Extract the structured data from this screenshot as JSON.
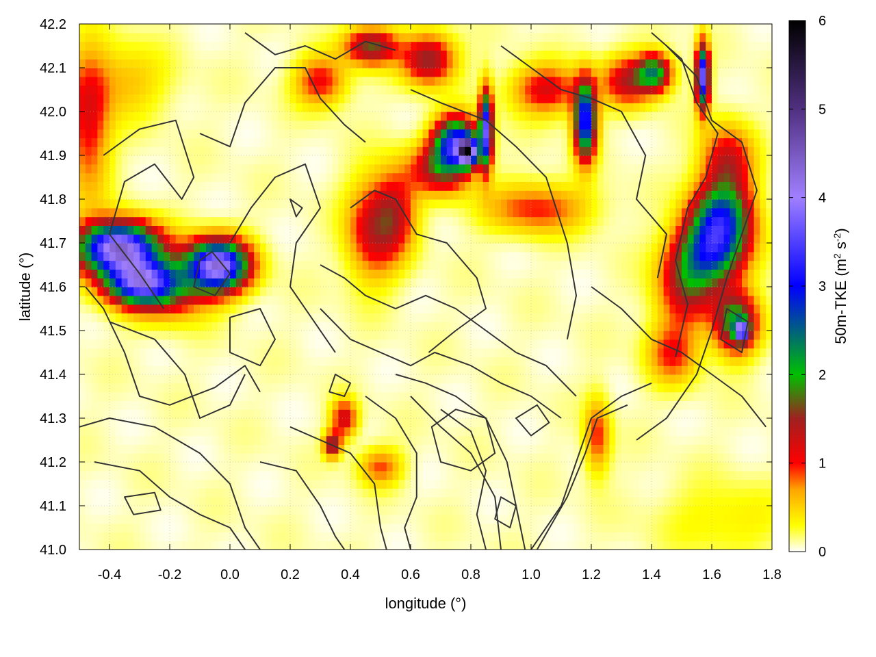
{
  "chart_data": {
    "type": "heatmap",
    "title": "",
    "xlabel": "longitude (°)",
    "ylabel": "latitude (°)",
    "colorbar_label_parts": [
      "50m-TKE (m",
      "2",
      " s",
      "-2",
      ")"
    ],
    "xlim": [
      -0.5,
      1.8
    ],
    "ylim": [
      41.0,
      42.2
    ],
    "x_ticks": [
      "-0.4",
      "-0.2",
      "0.0",
      "0.2",
      "0.4",
      "0.6",
      "0.8",
      "1.0",
      "1.2",
      "1.4",
      "1.6",
      "1.8"
    ],
    "x_tick_values": [
      -0.4,
      -0.2,
      0.0,
      0.2,
      0.4,
      0.6,
      0.8,
      1.0,
      1.2,
      1.4,
      1.6,
      1.8
    ],
    "y_ticks": [
      "41.0",
      "41.1",
      "41.2",
      "41.3",
      "41.4",
      "41.5",
      "41.6",
      "41.7",
      "41.8",
      "41.9",
      "42.0",
      "42.1",
      "42.2"
    ],
    "y_tick_values": [
      41.0,
      41.1,
      41.2,
      41.3,
      41.4,
      41.5,
      41.6,
      41.7,
      41.8,
      41.9,
      42.0,
      42.1,
      42.2
    ],
    "colorbar_range": [
      0,
      6
    ],
    "colorbar_ticks": [
      "0",
      "1",
      "2",
      "3",
      "4",
      "5",
      "6"
    ],
    "colorbar_tick_values": [
      0,
      1,
      2,
      3,
      4,
      5,
      6
    ],
    "grid": true,
    "colormap": [
      {
        "v": 0.0,
        "color": "#ffffff"
      },
      {
        "v": 0.3,
        "color": "#ffff00"
      },
      {
        "v": 0.7,
        "color": "#ffa500"
      },
      {
        "v": 1.0,
        "color": "#ff0000"
      },
      {
        "v": 1.5,
        "color": "#a02020"
      },
      {
        "v": 2.0,
        "color": "#00c000"
      },
      {
        "v": 3.0,
        "color": "#0000ff"
      },
      {
        "v": 4.0,
        "color": "#a080ff"
      },
      {
        "v": 5.0,
        "color": "#503080"
      },
      {
        "v": 6.0,
        "color": "#000000"
      }
    ],
    "features": [
      {
        "lon": -0.37,
        "lat": 41.69,
        "peak": 4.2,
        "sx": 0.09,
        "sy": 0.04
      },
      {
        "lon": -0.3,
        "lat": 41.61,
        "peak": 3.0,
        "sx": 0.08,
        "sy": 0.035
      },
      {
        "lon": -0.04,
        "lat": 41.65,
        "peak": 4.0,
        "sx": 0.07,
        "sy": 0.04
      },
      {
        "lon": -0.2,
        "lat": 41.6,
        "peak": 1.2,
        "sx": 0.1,
        "sy": 0.05
      },
      {
        "lon": -0.47,
        "lat": 41.97,
        "peak": 1.0,
        "sx": 0.05,
        "sy": 0.12
      },
      {
        "lon": -0.35,
        "lat": 42.07,
        "peak": 0.5,
        "sx": 0.1,
        "sy": 0.06
      },
      {
        "lon": 0.47,
        "lat": 41.73,
        "peak": 1.1,
        "sx": 0.06,
        "sy": 0.08
      },
      {
        "lon": 0.55,
        "lat": 41.77,
        "peak": 1.0,
        "sx": 0.05,
        "sy": 0.07
      },
      {
        "lon": 1.02,
        "lat": 41.78,
        "peak": 0.9,
        "sx": 0.12,
        "sy": 0.04
      },
      {
        "lon": 0.47,
        "lat": 42.15,
        "peak": 1.6,
        "sx": 0.06,
        "sy": 0.03
      },
      {
        "lon": 0.3,
        "lat": 42.07,
        "peak": 1.0,
        "sx": 0.06,
        "sy": 0.04
      },
      {
        "lon": 0.75,
        "lat": 41.93,
        "peak": 3.0,
        "sx": 0.05,
        "sy": 0.04
      },
      {
        "lon": 0.79,
        "lat": 41.91,
        "peak": 4.0,
        "sx": 0.02,
        "sy": 0.02
      },
      {
        "lon": 0.85,
        "lat": 41.96,
        "peak": 3.3,
        "sx": 0.015,
        "sy": 0.06
      },
      {
        "lon": 0.66,
        "lat": 42.12,
        "peak": 1.5,
        "sx": 0.06,
        "sy": 0.04
      },
      {
        "lon": 0.7,
        "lat": 41.87,
        "peak": 1.4,
        "sx": 0.07,
        "sy": 0.04
      },
      {
        "lon": 1.18,
        "lat": 41.98,
        "peak": 3.2,
        "sx": 0.025,
        "sy": 0.06
      },
      {
        "lon": 1.05,
        "lat": 42.05,
        "peak": 1.1,
        "sx": 0.08,
        "sy": 0.04
      },
      {
        "lon": 1.32,
        "lat": 42.07,
        "peak": 1.2,
        "sx": 0.06,
        "sy": 0.04
      },
      {
        "lon": 1.41,
        "lat": 42.09,
        "peak": 2.0,
        "sx": 0.04,
        "sy": 0.03
      },
      {
        "lon": 1.57,
        "lat": 42.08,
        "peak": 3.6,
        "sx": 0.015,
        "sy": 0.05
      },
      {
        "lon": 1.65,
        "lat": 41.88,
        "peak": 1.3,
        "sx": 0.06,
        "sy": 0.06
      },
      {
        "lon": 1.63,
        "lat": 41.76,
        "peak": 2.3,
        "sx": 0.07,
        "sy": 0.05
      },
      {
        "lon": 1.6,
        "lat": 41.68,
        "peak": 2.3,
        "sx": 0.08,
        "sy": 0.05
      },
      {
        "lon": 1.52,
        "lat": 41.6,
        "peak": 1.3,
        "sx": 0.07,
        "sy": 0.06
      },
      {
        "lon": 1.68,
        "lat": 41.52,
        "peak": 2.0,
        "sx": 0.05,
        "sy": 0.05
      },
      {
        "lon": 1.7,
        "lat": 41.5,
        "peak": 3.0,
        "sx": 0.015,
        "sy": 0.015
      },
      {
        "lon": 1.47,
        "lat": 41.45,
        "peak": 0.9,
        "sx": 0.06,
        "sy": 0.05
      },
      {
        "lon": 0.38,
        "lat": 41.3,
        "peak": 1.2,
        "sx": 0.03,
        "sy": 0.03
      },
      {
        "lon": 0.34,
        "lat": 41.24,
        "peak": 1.6,
        "sx": 0.02,
        "sy": 0.02
      },
      {
        "lon": 1.22,
        "lat": 41.26,
        "peak": 0.9,
        "sx": 0.03,
        "sy": 0.06
      },
      {
        "lon": 0.5,
        "lat": 41.19,
        "peak": 0.8,
        "sx": 0.05,
        "sy": 0.03
      },
      {
        "lon": 1.65,
        "lat": 41.07,
        "peak": 0.3,
        "sx": 0.15,
        "sy": 0.06
      }
    ],
    "contour_lines": [
      [
        [
          -0.42,
          41.9
        ],
        [
          -0.3,
          41.96
        ],
        [
          -0.18,
          41.98
        ],
        [
          -0.12,
          41.85
        ],
        [
          -0.16,
          41.8
        ],
        [
          -0.25,
          41.88
        ],
        [
          -0.35,
          41.84
        ],
        [
          -0.4,
          41.72
        ],
        [
          -0.3,
          41.63
        ],
        [
          -0.22,
          41.55
        ]
      ],
      [
        [
          -0.48,
          41.6
        ],
        [
          -0.42,
          41.55
        ],
        [
          -0.35,
          41.45
        ],
        [
          -0.3,
          41.35
        ],
        [
          -0.2,
          41.33
        ],
        [
          -0.05,
          41.37
        ],
        [
          0.05,
          41.42
        ],
        [
          0.1,
          41.36
        ]
      ],
      [
        [
          -0.4,
          41.52
        ],
        [
          -0.25,
          41.48
        ],
        [
          -0.15,
          41.4
        ],
        [
          -0.1,
          41.3
        ],
        [
          0.0,
          41.33
        ],
        [
          0.05,
          41.4
        ]
      ],
      [
        [
          -0.5,
          41.28
        ],
        [
          -0.4,
          41.3
        ],
        [
          -0.25,
          41.28
        ],
        [
          -0.1,
          41.22
        ],
        [
          0.0,
          41.15
        ],
        [
          0.05,
          41.05
        ],
        [
          0.1,
          41.0
        ]
      ],
      [
        [
          -0.45,
          41.2
        ],
        [
          -0.3,
          41.18
        ],
        [
          -0.2,
          41.12
        ],
        [
          -0.1,
          41.08
        ],
        [
          0.0,
          41.05
        ],
        [
          0.05,
          41.0
        ]
      ],
      [
        [
          0.0,
          41.7
        ],
        [
          0.07,
          41.78
        ],
        [
          0.15,
          41.85
        ],
        [
          0.25,
          41.88
        ],
        [
          0.3,
          41.78
        ],
        [
          0.22,
          41.7
        ],
        [
          0.2,
          41.6
        ],
        [
          0.28,
          41.52
        ],
        [
          0.35,
          41.45
        ]
      ],
      [
        [
          -0.1,
          41.95
        ],
        [
          0.0,
          41.92
        ],
        [
          0.05,
          42.02
        ],
        [
          0.15,
          42.1
        ],
        [
          0.25,
          42.1
        ],
        [
          0.3,
          42.03
        ],
        [
          0.38,
          41.97
        ],
        [
          0.45,
          41.93
        ]
      ],
      [
        [
          0.4,
          41.78
        ],
        [
          0.48,
          41.82
        ],
        [
          0.55,
          41.8
        ],
        [
          0.62,
          41.72
        ],
        [
          0.72,
          41.7
        ],
        [
          0.82,
          41.62
        ],
        [
          0.85,
          41.55
        ],
        [
          0.75,
          41.5
        ],
        [
          0.66,
          41.45
        ]
      ],
      [
        [
          0.6,
          42.05
        ],
        [
          0.7,
          42.02
        ],
        [
          0.85,
          41.98
        ],
        [
          0.95,
          41.92
        ],
        [
          1.05,
          41.85
        ],
        [
          1.12,
          41.7
        ],
        [
          1.15,
          41.58
        ],
        [
          1.12,
          41.48
        ]
      ],
      [
        [
          0.9,
          42.15
        ],
        [
          1.0,
          42.1
        ],
        [
          1.1,
          42.05
        ],
        [
          1.2,
          42.03
        ],
        [
          1.3,
          42.0
        ],
        [
          1.38,
          41.9
        ],
        [
          1.35,
          41.8
        ],
        [
          1.45,
          41.72
        ],
        [
          1.42,
          41.62
        ]
      ],
      [
        [
          1.45,
          42.15
        ],
        [
          1.55,
          42.08
        ],
        [
          1.6,
          41.98
        ],
        [
          1.7,
          41.93
        ],
        [
          1.75,
          41.82
        ],
        [
          1.7,
          41.72
        ],
        [
          1.65,
          41.62
        ],
        [
          1.6,
          41.5
        ],
        [
          1.55,
          41.4
        ],
        [
          1.45,
          41.3
        ],
        [
          1.35,
          41.25
        ]
      ],
      [
        [
          1.4,
          42.18
        ],
        [
          1.5,
          42.12
        ],
        [
          1.55,
          42.02
        ],
        [
          1.62,
          41.95
        ],
        [
          1.58,
          41.85
        ],
        [
          1.52,
          41.78
        ],
        [
          1.48,
          41.66
        ],
        [
          1.52,
          41.56
        ],
        [
          1.48,
          41.44
        ]
      ],
      [
        [
          0.55,
          41.4
        ],
        [
          0.65,
          41.38
        ],
        [
          0.75,
          41.35
        ],
        [
          0.85,
          41.3
        ],
        [
          0.92,
          41.2
        ],
        [
          0.95,
          41.1
        ],
        [
          0.98,
          41.0
        ]
      ],
      [
        [
          0.6,
          41.35
        ],
        [
          0.7,
          41.28
        ],
        [
          0.8,
          41.22
        ],
        [
          0.88,
          41.12
        ],
        [
          0.9,
          41.0
        ]
      ],
      [
        [
          0.7,
          41.32
        ],
        [
          0.8,
          41.27
        ],
        [
          0.85,
          41.18
        ],
        [
          0.82,
          41.08
        ],
        [
          0.85,
          41.0
        ]
      ],
      [
        [
          1.0,
          41.0
        ],
        [
          1.1,
          41.1
        ],
        [
          1.15,
          41.2
        ],
        [
          1.2,
          41.3
        ],
        [
          1.3,
          41.35
        ],
        [
          1.4,
          41.38
        ]
      ],
      [
        [
          1.02,
          41.0
        ],
        [
          1.12,
          41.12
        ],
        [
          1.18,
          41.22
        ],
        [
          1.22,
          41.3
        ],
        [
          1.32,
          41.33
        ]
      ],
      [
        [
          0.45,
          41.35
        ],
        [
          0.55,
          41.3
        ],
        [
          0.62,
          41.22
        ],
        [
          0.62,
          41.12
        ],
        [
          0.58,
          41.05
        ],
        [
          0.6,
          41.0
        ]
      ],
      [
        [
          0.2,
          41.28
        ],
        [
          0.3,
          41.25
        ],
        [
          0.4,
          41.22
        ],
        [
          0.48,
          41.15
        ],
        [
          0.5,
          41.05
        ],
        [
          0.52,
          41.0
        ]
      ],
      [
        [
          0.1,
          41.2
        ],
        [
          0.22,
          41.18
        ],
        [
          0.3,
          41.1
        ],
        [
          0.35,
          41.03
        ],
        [
          0.38,
          41.0
        ]
      ],
      [
        [
          0.3,
          41.55
        ],
        [
          0.4,
          41.48
        ],
        [
          0.5,
          41.45
        ],
        [
          0.6,
          41.42
        ],
        [
          0.68,
          41.45
        ],
        [
          0.8,
          41.42
        ],
        [
          0.9,
          41.38
        ],
        [
          1.0,
          41.35
        ],
        [
          1.1,
          41.3
        ]
      ],
      [
        [
          0.3,
          41.65
        ],
        [
          0.38,
          41.62
        ],
        [
          0.45,
          41.58
        ],
        [
          0.55,
          41.55
        ],
        [
          0.65,
          41.58
        ],
        [
          0.75,
          41.55
        ],
        [
          0.85,
          41.5
        ],
        [
          0.95,
          41.45
        ],
        [
          1.05,
          41.42
        ],
        [
          1.15,
          41.35
        ]
      ],
      [
        [
          0.05,
          42.18
        ],
        [
          0.15,
          42.13
        ],
        [
          0.25,
          42.15
        ],
        [
          0.35,
          42.12
        ],
        [
          0.45,
          42.16
        ],
        [
          0.55,
          42.14
        ]
      ],
      [
        [
          1.2,
          41.6
        ],
        [
          1.3,
          41.55
        ],
        [
          1.4,
          41.48
        ],
        [
          1.5,
          41.45
        ],
        [
          1.6,
          41.4
        ],
        [
          1.7,
          41.35
        ],
        [
          1.78,
          41.28
        ]
      ]
    ],
    "contour_loops": [
      [
        [
          -0.06,
          41.68
        ],
        [
          0.0,
          41.63
        ],
        [
          -0.05,
          41.58
        ],
        [
          -0.12,
          41.6
        ],
        [
          -0.1,
          41.66
        ]
      ],
      [
        [
          0.0,
          41.53
        ],
        [
          0.1,
          41.55
        ],
        [
          0.15,
          41.48
        ],
        [
          0.1,
          41.42
        ],
        [
          0.0,
          41.45
        ]
      ],
      [
        [
          0.67,
          41.28
        ],
        [
          0.75,
          41.32
        ],
        [
          0.85,
          41.3
        ],
        [
          0.88,
          41.22
        ],
        [
          0.8,
          41.18
        ],
        [
          0.7,
          41.2
        ]
      ],
      [
        [
          0.95,
          41.3
        ],
        [
          1.02,
          41.33
        ],
        [
          1.06,
          41.29
        ],
        [
          1.0,
          41.26
        ]
      ],
      [
        [
          1.65,
          41.55
        ],
        [
          1.72,
          41.52
        ],
        [
          1.7,
          41.45
        ],
        [
          1.63,
          41.48
        ]
      ],
      [
        [
          0.9,
          41.12
        ],
        [
          0.95,
          41.1
        ],
        [
          0.93,
          41.05
        ],
        [
          0.88,
          41.07
        ]
      ],
      [
        [
          -0.35,
          41.12
        ],
        [
          -0.25,
          41.13
        ],
        [
          -0.23,
          41.09
        ],
        [
          -0.32,
          41.08
        ]
      ],
      [
        [
          0.35,
          41.4
        ],
        [
          0.4,
          41.38
        ],
        [
          0.38,
          41.35
        ],
        [
          0.33,
          41.36
        ]
      ],
      [
        [
          0.2,
          41.8
        ],
        [
          0.24,
          41.78
        ],
        [
          0.22,
          41.76
        ]
      ]
    ]
  }
}
